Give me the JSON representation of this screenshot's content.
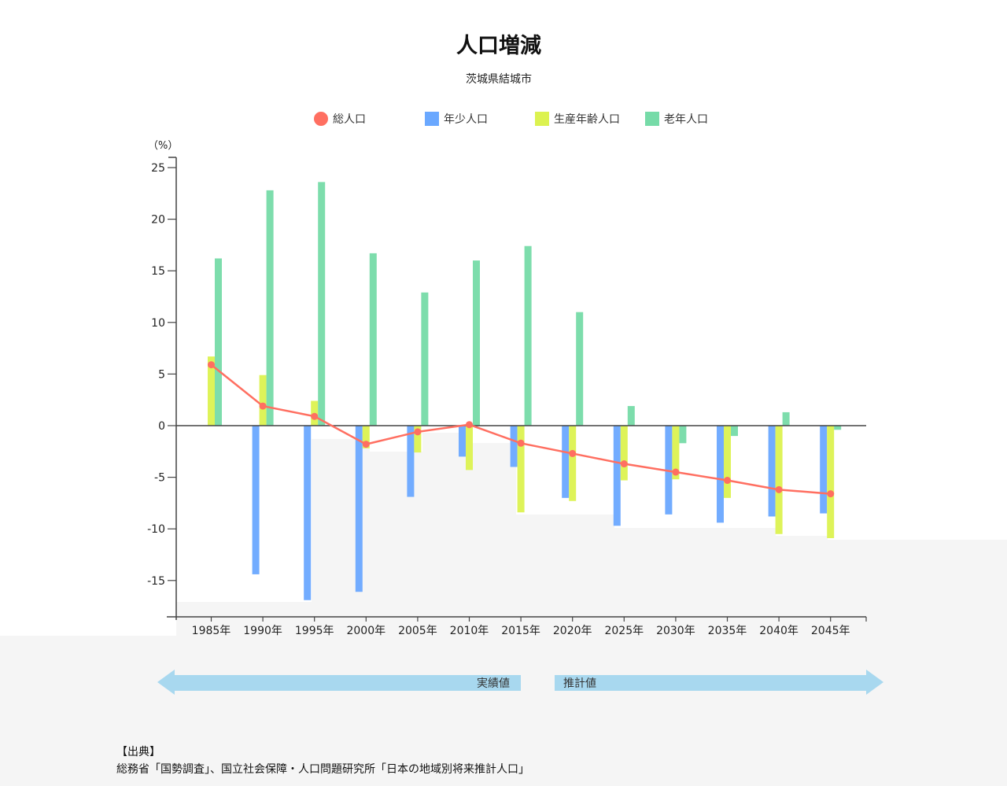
{
  "header": {
    "title": "人口増減",
    "subtitle": "茨城県結城市"
  },
  "legend": [
    {
      "label": "総人口",
      "color": "#ff6f61",
      "shape": "circle-icon"
    },
    {
      "label": "年少人口",
      "color": "#6aa8ff",
      "shape": "square-icon"
    },
    {
      "label": "生産年齢人口",
      "color": "#dcf250",
      "shape": "square-icon"
    },
    {
      "label": "老年人口",
      "color": "#76dba8",
      "shape": "square-icon"
    }
  ],
  "axis": {
    "unit_label": "（%）"
  },
  "period_arrows": {
    "actual_label": "実績値",
    "projected_label": "推計値",
    "color": "#a8d8ef"
  },
  "source": {
    "heading": "【出典】",
    "text": "総務省「国勢調査」、国立社会保障・人口問題研究所「日本の地域別将来推計人口」"
  },
  "chart_data": {
    "type": "bar+line",
    "title": "人口増減",
    "subtitle": "茨城県結城市",
    "xlabel": "",
    "ylabel": "（%）",
    "ylim": [
      -18.5,
      26
    ],
    "yticks": [
      25,
      20,
      15,
      10,
      5,
      0,
      -5,
      -10,
      -15
    ],
    "grid": false,
    "legend_position": "top",
    "categories": [
      "1985年",
      "1990年",
      "1995年",
      "2000年",
      "2005年",
      "2010年",
      "2015年",
      "2020年",
      "2025年",
      "2030年",
      "2035年",
      "2040年",
      "2045年"
    ],
    "series": [
      {
        "name": "総人口",
        "type": "line",
        "color": "#ff6f61",
        "values": [
          5.9,
          1.9,
          0.9,
          -1.8,
          -0.6,
          0.1,
          -1.7,
          -2.7,
          -3.7,
          -4.5,
          -5.3,
          -6.2,
          -6.6
        ]
      },
      {
        "name": "年少人口",
        "type": "bar",
        "color": "#6aa8ff",
        "values": [
          0,
          -14.4,
          -16.9,
          -16.1,
          -6.9,
          -3.0,
          -4.0,
          -7.0,
          -9.7,
          -8.6,
          -9.4,
          -8.8,
          -8.5
        ]
      },
      {
        "name": "生産年齢人口",
        "type": "bar",
        "color": "#dcf250",
        "values": [
          6.7,
          4.9,
          2.4,
          -2.2,
          -2.6,
          -4.3,
          -8.4,
          -7.3,
          -5.3,
          -5.2,
          -7.0,
          -10.5,
          -10.9
        ]
      },
      {
        "name": "老年人口",
        "type": "bar",
        "color": "#76dba8",
        "values": [
          16.2,
          22.8,
          23.6,
          16.7,
          12.9,
          16.0,
          17.4,
          11.0,
          1.9,
          -1.7,
          -1.0,
          1.3,
          -0.4
        ]
      }
    ],
    "annotations": [
      "実績値 (1985年–2015年)",
      "推計値 (2020年–2045年)"
    ]
  }
}
